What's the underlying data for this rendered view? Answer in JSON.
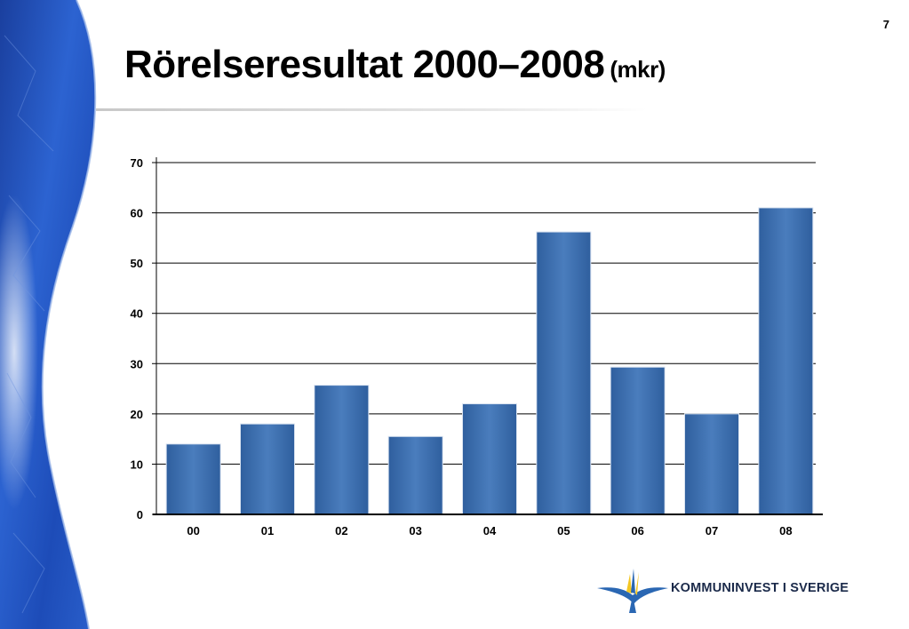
{
  "slide": {
    "number": "7"
  },
  "title": {
    "main": "Rörelseresultat 2000–2008",
    "unit": "(mkr)"
  },
  "brand": {
    "name": "KOMMUNINVEST I SVERIGE"
  },
  "colors": {
    "bar": "#2f5f9e",
    "bar_highlight": "#4a7dbd",
    "grid": "#000000",
    "background_art": "#1f4fb5"
  },
  "chart_data": {
    "type": "bar",
    "categories": [
      "00",
      "01",
      "02",
      "03",
      "04",
      "05",
      "06",
      "07",
      "08"
    ],
    "values": [
      14,
      18,
      25.7,
      15.5,
      22,
      56.2,
      29.3,
      20,
      61
    ],
    "title": "Rörelseresultat 2000–2008 (mkr)",
    "xlabel": "",
    "ylabel": "",
    "ylim": [
      0,
      70
    ],
    "yticks": [
      0,
      10,
      20,
      30,
      40,
      50,
      60,
      70
    ],
    "grid": true,
    "legend": "none"
  }
}
